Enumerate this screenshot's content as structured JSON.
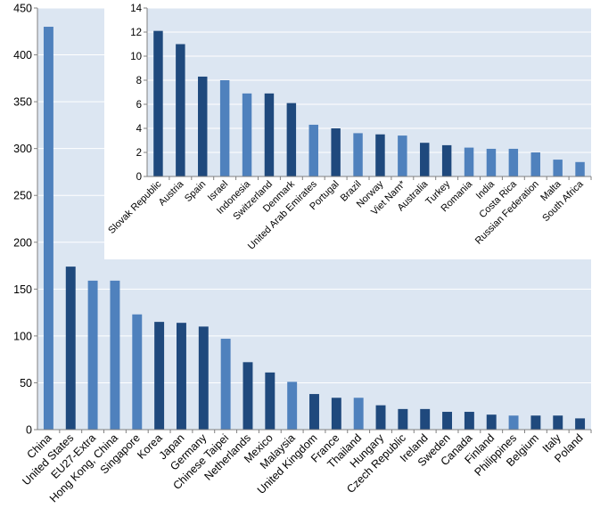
{
  "chart_data": [
    {
      "type": "bar",
      "title": "",
      "xlabel": "",
      "ylabel": "",
      "ylim": [
        0,
        450
      ],
      "yticks": [
        0,
        50,
        100,
        150,
        200,
        250,
        300,
        350,
        400,
        450
      ],
      "grid": true,
      "categories": [
        "China",
        "United States",
        "EU27-Extra",
        "Hong Kong, China",
        "Singapore",
        "Korea",
        "Japan",
        "Germany",
        "Chinese Taipei",
        "Netherlands",
        "Mexico",
        "Malaysia",
        "United Kingdom",
        "France",
        "Thailand",
        "Hungary",
        "Czech Republic",
        "Ireland",
        "Sweden",
        "Canada",
        "Finland",
        "Philippines",
        "Belgium",
        "Italy",
        "Poland"
      ],
      "values": [
        430,
        174,
        159,
        159,
        123,
        115,
        114,
        110,
        97,
        72,
        61,
        51,
        38,
        34,
        34,
        26,
        22,
        22,
        19,
        19,
        16,
        15,
        15,
        15,
        12
      ],
      "bar_colors": [
        "#4f81bd",
        "#1f497d",
        "#4f81bd",
        "#4f81bd",
        "#4f81bd",
        "#1f497d",
        "#1f497d",
        "#1f497d",
        "#4f81bd",
        "#1f497d",
        "#1f497d",
        "#4f81bd",
        "#1f497d",
        "#1f497d",
        "#4f81bd",
        "#1f497d",
        "#1f497d",
        "#1f497d",
        "#1f497d",
        "#1f497d",
        "#1f497d",
        "#4f81bd",
        "#1f497d",
        "#1f497d",
        "#1f497d"
      ]
    },
    {
      "type": "bar",
      "title": "",
      "xlabel": "",
      "ylabel": "",
      "ylim": [
        0,
        14
      ],
      "yticks": [
        0,
        2,
        4,
        6,
        8,
        10,
        12,
        14
      ],
      "grid": true,
      "categories": [
        "Slovak Republic",
        "Austria",
        "Spain",
        "Israel",
        "Indonesia",
        "Switzerland",
        "Denmark",
        "United Arab Emirates",
        "Portugal",
        "Brazil",
        "Norway",
        "Viet Nam*",
        "Australia",
        "Turkey",
        "Romania",
        "India",
        "Costa Rica",
        "Russian Federation",
        "Malta",
        "South Africa"
      ],
      "values": [
        12.1,
        11.0,
        8.3,
        8.0,
        6.9,
        6.9,
        6.1,
        4.3,
        4.0,
        3.6,
        3.5,
        3.4,
        2.8,
        2.6,
        2.4,
        2.3,
        2.3,
        2.0,
        1.4,
        1.2
      ],
      "bar_colors": [
        "#1f497d",
        "#1f497d",
        "#1f497d",
        "#4f81bd",
        "#4f81bd",
        "#1f497d",
        "#1f497d",
        "#4f81bd",
        "#1f497d",
        "#4f81bd",
        "#1f497d",
        "#4f81bd",
        "#1f497d",
        "#1f497d",
        "#4f81bd",
        "#4f81bd",
        "#4f81bd",
        "#4f81bd",
        "#4f81bd",
        "#4f81bd"
      ]
    }
  ],
  "colors": {
    "plot_bg": "#dce6f2",
    "grid": "#ffffff",
    "axis": "#808080"
  }
}
